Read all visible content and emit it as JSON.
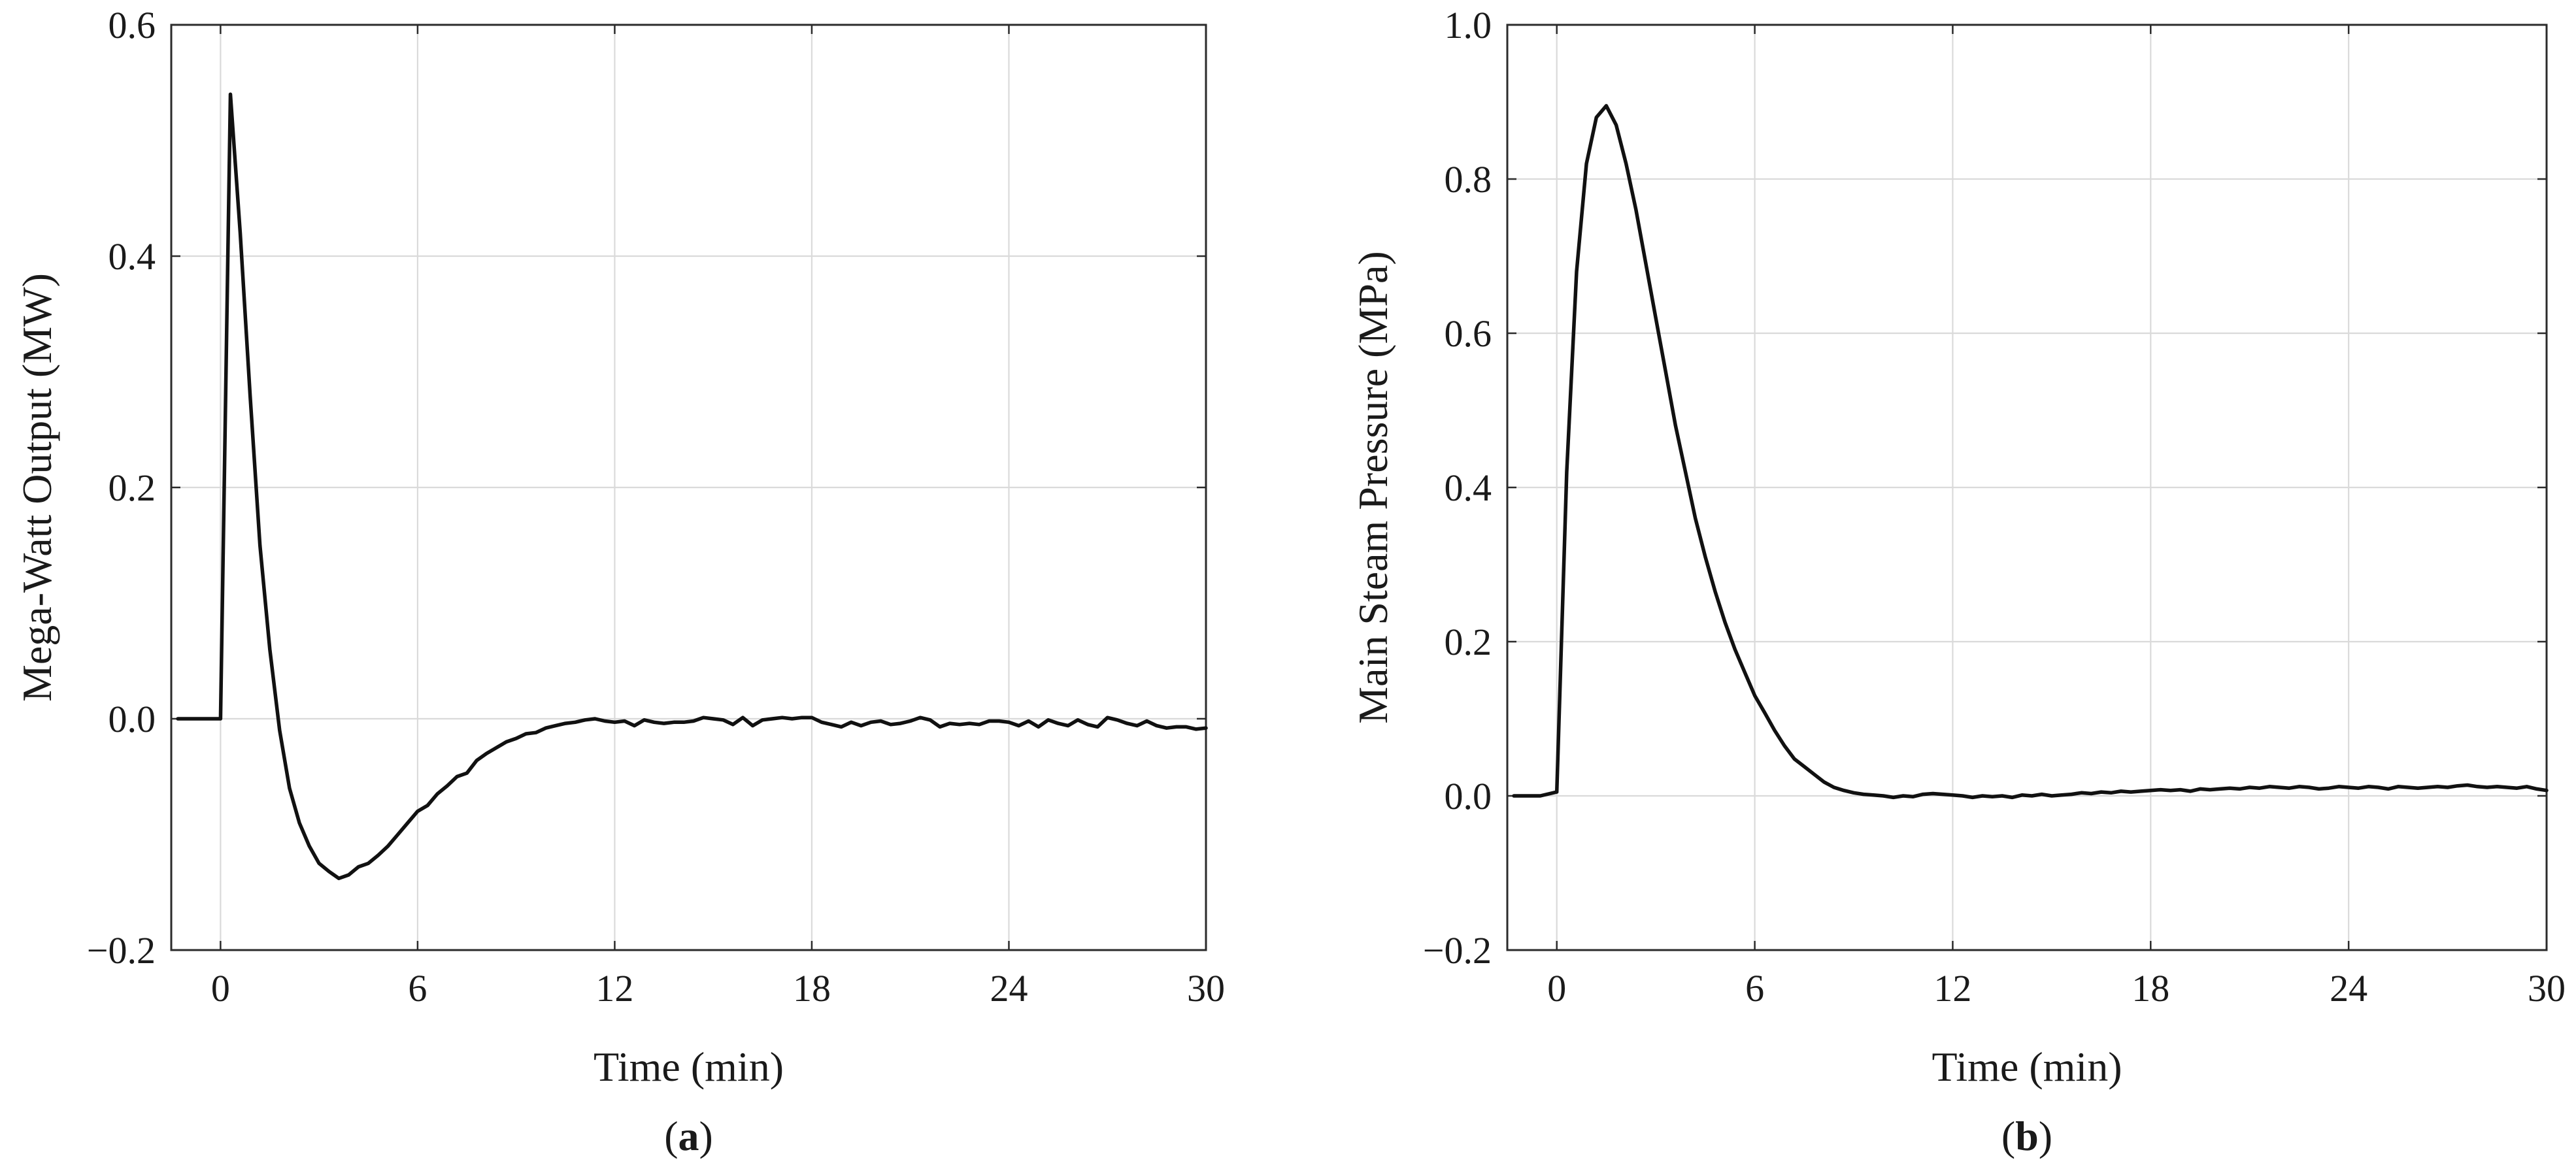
{
  "chart_data": [
    {
      "type": "line",
      "panel_label": "a",
      "xlabel": "Time (min)",
      "ylabel": "Mega-Watt Output (MW)",
      "xlim": [
        -1.5,
        30
      ],
      "ylim": [
        -0.2,
        0.6
      ],
      "xticks": [
        0,
        6,
        12,
        18,
        24,
        30
      ],
      "yticks": [
        -0.2,
        0.0,
        0.2,
        0.4,
        0.6
      ],
      "xtick_labels": [
        "0",
        "6",
        "12",
        "18",
        "24",
        "30"
      ],
      "ytick_labels": [
        "−0.2",
        "0.0",
        "0.2",
        "0.4",
        "0.6"
      ],
      "grid": true,
      "series": [
        {
          "x": [
            -1.3,
            -1.0,
            -0.5,
            0.0,
            0.3,
            0.6,
            0.9,
            1.2,
            1.5,
            1.8,
            2.1,
            2.4,
            2.7,
            3.0,
            3.3,
            3.6,
            3.9,
            4.2,
            4.5,
            4.8,
            5.1,
            5.4,
            5.7,
            6.0,
            6.3,
            6.6,
            6.9,
            7.2,
            7.5,
            7.8,
            8.1,
            8.4,
            8.7,
            9.0,
            9.3,
            9.6,
            9.9,
            10.2,
            10.5,
            10.8,
            11.1,
            11.4,
            11.7,
            12.0,
            12.3,
            12.6,
            12.9,
            13.2,
            13.5,
            13.8,
            14.1,
            14.4,
            14.7,
            15.0,
            15.3,
            15.6,
            15.9,
            16.2,
            16.5,
            16.8,
            17.1,
            17.4,
            17.7,
            18.0,
            18.3,
            18.6,
            18.9,
            19.2,
            19.5,
            19.8,
            20.1,
            20.4,
            20.7,
            21.0,
            21.3,
            21.6,
            21.9,
            22.2,
            22.5,
            22.8,
            23.1,
            23.4,
            23.7,
            24.0,
            24.3,
            24.6,
            24.9,
            25.2,
            25.5,
            25.8,
            26.1,
            26.4,
            26.7,
            27.0,
            27.3,
            27.6,
            27.9,
            28.2,
            28.5,
            28.8,
            29.1,
            29.4,
            29.7,
            30.0
          ],
          "values": [
            0.0,
            0.0,
            0.0,
            0.0,
            0.54,
            0.42,
            0.28,
            0.15,
            0.06,
            -0.01,
            -0.06,
            -0.09,
            -0.11,
            -0.125,
            -0.132,
            -0.138,
            -0.135,
            -0.128,
            -0.125,
            -0.118,
            -0.11,
            -0.1,
            -0.09,
            -0.08,
            -0.075,
            -0.065,
            -0.058,
            -0.05,
            -0.047,
            -0.036,
            -0.03,
            -0.025,
            -0.02,
            -0.017,
            -0.013,
            -0.012,
            -0.008,
            -0.006,
            -0.004,
            -0.003,
            -0.001,
            0.0,
            -0.002,
            -0.003,
            -0.002,
            -0.006,
            -0.001,
            -0.003,
            -0.004,
            -0.003,
            -0.003,
            -0.002,
            0.001,
            0.0,
            -0.001,
            -0.005,
            0.001,
            -0.006,
            -0.001,
            0.0,
            0.001,
            0.0,
            0.001,
            0.001,
            -0.003,
            -0.005,
            -0.007,
            -0.003,
            -0.006,
            -0.003,
            -0.002,
            -0.005,
            -0.004,
            -0.002,
            0.001,
            -0.001,
            -0.007,
            -0.004,
            -0.005,
            -0.004,
            -0.005,
            -0.002,
            -0.002,
            -0.003,
            -0.006,
            -0.002,
            -0.007,
            -0.001,
            -0.004,
            -0.006,
            -0.001,
            -0.005,
            -0.007,
            0.001,
            -0.001,
            -0.004,
            -0.006,
            -0.002,
            -0.006,
            -0.008,
            -0.007,
            -0.007,
            -0.009,
            -0.008
          ]
        }
      ]
    },
    {
      "type": "line",
      "panel_label": "b",
      "xlabel": "Time (min)",
      "ylabel": "Main Steam Pressure (MPa)",
      "xlim": [
        -1.5,
        30
      ],
      "ylim": [
        -0.2,
        1.0
      ],
      "xticks": [
        0,
        6,
        12,
        18,
        24,
        30
      ],
      "yticks": [
        -0.2,
        0.0,
        0.2,
        0.4,
        0.6,
        0.8,
        1.0
      ],
      "xtick_labels": [
        "0",
        "6",
        "12",
        "18",
        "24",
        "30"
      ],
      "ytick_labels": [
        "−0.2",
        "0.0",
        "0.2",
        "0.4",
        "0.6",
        "0.8",
        "1.0"
      ],
      "grid": true,
      "series": [
        {
          "x": [
            -1.3,
            -1.0,
            -0.5,
            0.0,
            0.3,
            0.6,
            0.9,
            1.2,
            1.5,
            1.8,
            2.1,
            2.4,
            2.7,
            3.0,
            3.3,
            3.6,
            3.9,
            4.2,
            4.5,
            4.8,
            5.1,
            5.4,
            5.7,
            6.0,
            6.3,
            6.6,
            6.9,
            7.2,
            7.5,
            7.8,
            8.1,
            8.4,
            8.7,
            9.0,
            9.3,
            9.6,
            9.9,
            10.2,
            10.5,
            10.8,
            11.1,
            11.4,
            11.7,
            12.0,
            12.3,
            12.6,
            12.9,
            13.2,
            13.5,
            13.8,
            14.1,
            14.4,
            14.7,
            15.0,
            15.3,
            15.6,
            15.9,
            16.2,
            16.5,
            16.8,
            17.1,
            17.4,
            17.7,
            18.0,
            18.3,
            18.6,
            18.9,
            19.2,
            19.5,
            19.8,
            20.1,
            20.4,
            20.7,
            21.0,
            21.3,
            21.6,
            21.9,
            22.2,
            22.5,
            22.8,
            23.1,
            23.4,
            23.7,
            24.0,
            24.3,
            24.6,
            24.9,
            25.2,
            25.5,
            25.8,
            26.1,
            26.4,
            26.7,
            27.0,
            27.3,
            27.6,
            27.9,
            28.2,
            28.5,
            28.8,
            29.1,
            29.4,
            29.7,
            30.0
          ],
          "values": [
            0.0,
            0.0,
            0.0,
            0.005,
            0.42,
            0.68,
            0.82,
            0.88,
            0.895,
            0.87,
            0.82,
            0.76,
            0.69,
            0.62,
            0.55,
            0.48,
            0.42,
            0.36,
            0.31,
            0.265,
            0.225,
            0.19,
            0.16,
            0.13,
            0.108,
            0.085,
            0.065,
            0.048,
            0.038,
            0.028,
            0.018,
            0.011,
            0.007,
            0.004,
            0.002,
            0.001,
            0.0,
            -0.002,
            0.0,
            -0.001,
            0.002,
            0.003,
            0.002,
            0.001,
            0.0,
            -0.002,
            0.0,
            -0.001,
            0.0,
            -0.002,
            0.001,
            0.0,
            0.002,
            0.0,
            0.001,
            0.002,
            0.004,
            0.003,
            0.005,
            0.004,
            0.006,
            0.005,
            0.006,
            0.007,
            0.008,
            0.007,
            0.008,
            0.006,
            0.009,
            0.008,
            0.009,
            0.01,
            0.009,
            0.011,
            0.01,
            0.012,
            0.011,
            0.01,
            0.012,
            0.011,
            0.009,
            0.01,
            0.012,
            0.011,
            0.01,
            0.012,
            0.011,
            0.009,
            0.012,
            0.011,
            0.01,
            0.011,
            0.012,
            0.011,
            0.013,
            0.014,
            0.012,
            0.011,
            0.012,
            0.011,
            0.01,
            0.012,
            0.009,
            0.007
          ]
        }
      ]
    }
  ]
}
